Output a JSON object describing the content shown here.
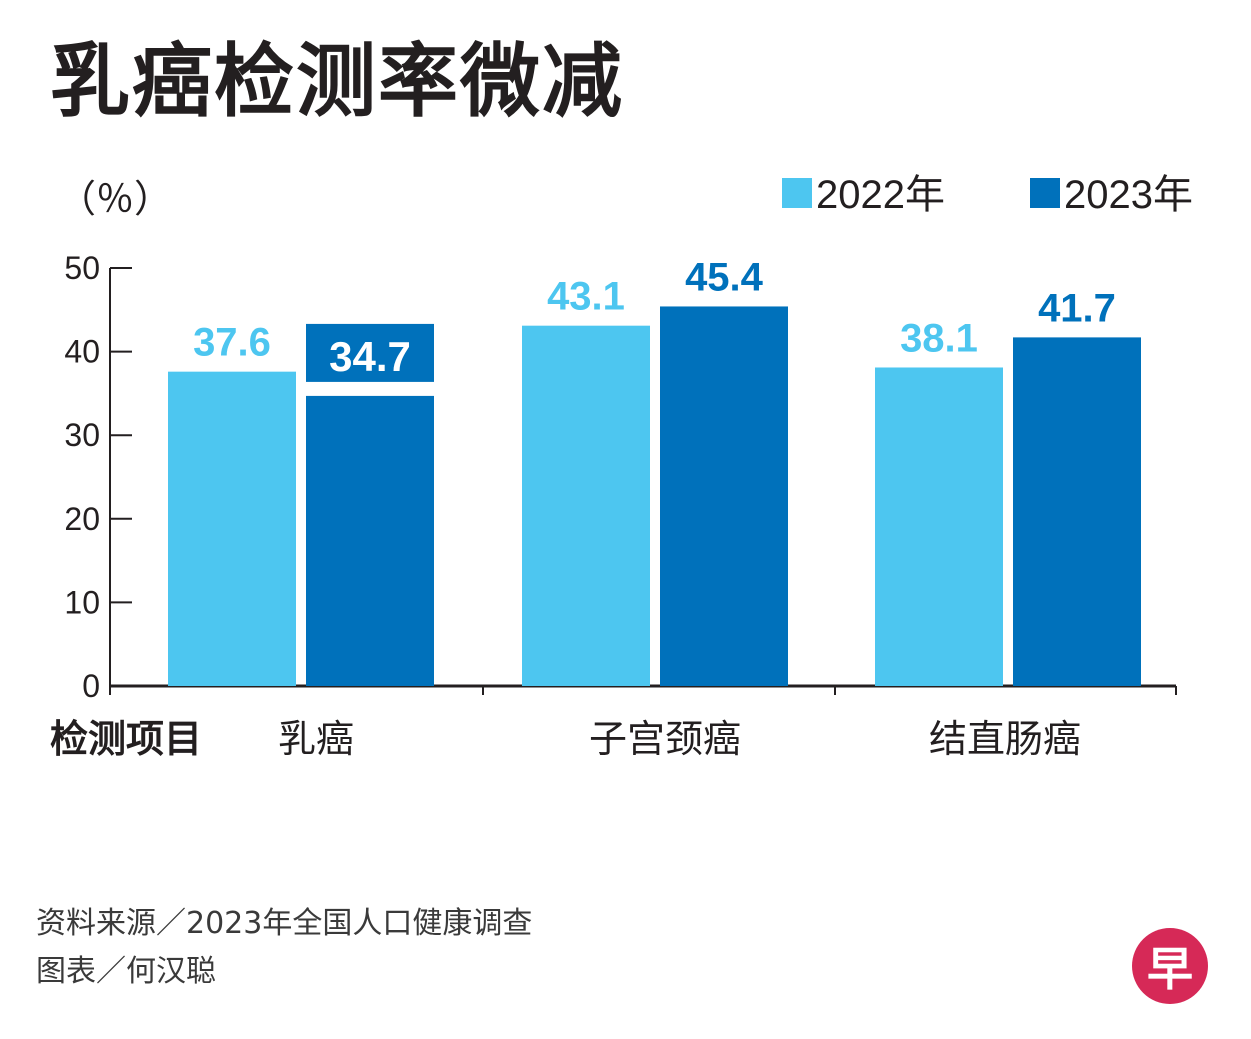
{
  "title": "乳癌检测率微减",
  "chart_data": {
    "type": "bar",
    "title": "乳癌检测率微减",
    "ylabel": "（％）",
    "xlabel": "检测项目",
    "ylim": [
      0,
      50
    ],
    "yticks": [
      0,
      10,
      20,
      30,
      40,
      50
    ],
    "categories": [
      "乳癌",
      "子宫颈癌",
      "结直肠癌"
    ],
    "series": [
      {
        "name": "2022年",
        "color": "#4dc6f0",
        "values": [
          37.6,
          43.1,
          38.1
        ],
        "labels": [
          "37.6",
          "43.1",
          "38.1"
        ]
      },
      {
        "name": "2023年",
        "color": "#0071bb",
        "values": [
          34.7,
          45.4,
          41.7
        ],
        "labels": [
          "34.7",
          "45.4",
          "41.7"
        ]
      }
    ],
    "legend": "top-right",
    "grid": false
  },
  "footer": {
    "source": "资料来源／2023年全国人口健康调查",
    "credit": "图表／何汉聪"
  },
  "logo": {
    "char": "早",
    "color": "#d62957"
  }
}
